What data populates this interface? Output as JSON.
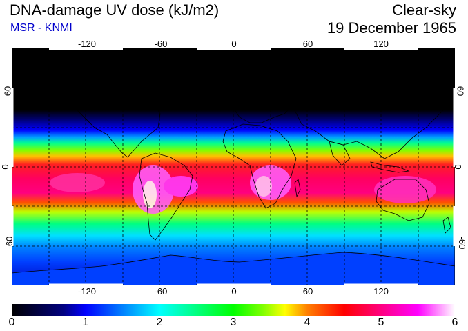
{
  "header": {
    "title": "DNA-damage UV dose (kJ/m2)",
    "credit": "MSR - KNMI",
    "sky": "Clear-sky",
    "date": "19 December 1965"
  },
  "map": {
    "lon_ticks": [
      "-120",
      "-60",
      "0",
      "60",
      "120"
    ],
    "lat_ticks": [
      "60",
      "0",
      "-60"
    ],
    "lon_range": [
      -180,
      180
    ],
    "lat_range": [
      -90,
      90
    ],
    "grid": "dashed, every 30°",
    "coastline_color": "#000000"
  },
  "colorbar": {
    "labels": [
      "0",
      "1",
      "2",
      "3",
      "4",
      "5",
      "6"
    ],
    "range": [
      0,
      6
    ],
    "stops": [
      {
        "v": 0.0,
        "c": "#000000"
      },
      {
        "v": 0.7,
        "c": "#000080"
      },
      {
        "v": 1.0,
        "c": "#0000ff"
      },
      {
        "v": 1.5,
        "c": "#0080ff"
      },
      {
        "v": 2.0,
        "c": "#00ffff"
      },
      {
        "v": 2.5,
        "c": "#00ff80"
      },
      {
        "v": 3.0,
        "c": "#00ff00"
      },
      {
        "v": 3.4,
        "c": "#80ff00"
      },
      {
        "v": 3.7,
        "c": "#ffff00"
      },
      {
        "v": 4.0,
        "c": "#ff8000"
      },
      {
        "v": 4.5,
        "c": "#ff0000"
      },
      {
        "v": 5.0,
        "c": "#ff0080"
      },
      {
        "v": 5.5,
        "c": "#ff00ff"
      },
      {
        "v": 6.0,
        "c": "#ffffff"
      }
    ]
  }
}
